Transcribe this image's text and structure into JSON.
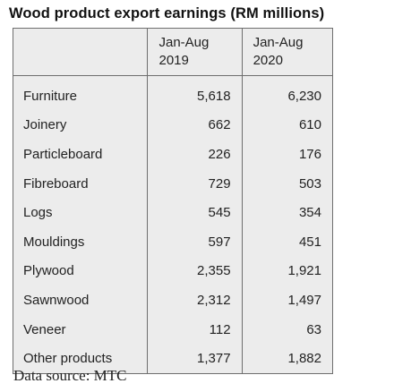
{
  "chart_data": {
    "type": "table",
    "title": "Wood product export earnings (RM millions)",
    "columns": [
      {
        "line1": "Jan-Aug",
        "line2": "2019"
      },
      {
        "line1": "Jan-Aug",
        "line2": "2020"
      }
    ],
    "rows": [
      {
        "label": "Furniture",
        "values": [
          "5,618",
          "6,230"
        ]
      },
      {
        "label": "Joinery",
        "values": [
          "662",
          "610"
        ]
      },
      {
        "label": "Particleboard",
        "values": [
          "226",
          "176"
        ]
      },
      {
        "label": "Fibreboard",
        "values": [
          "729",
          "503"
        ]
      },
      {
        "label": "Logs",
        "values": [
          "545",
          "354"
        ]
      },
      {
        "label": "Mouldings",
        "values": [
          "597",
          "451"
        ]
      },
      {
        "label": "Plywood",
        "values": [
          "2,355",
          "1,921"
        ]
      },
      {
        "label": "Sawnwood",
        "values": [
          "2,312",
          "1,497"
        ]
      },
      {
        "label": "Veneer",
        "values": [
          "112",
          "63"
        ]
      },
      {
        "label": "Other products",
        "values": [
          "1,377",
          "1,882"
        ]
      }
    ],
    "source": "Data source: MTC"
  }
}
